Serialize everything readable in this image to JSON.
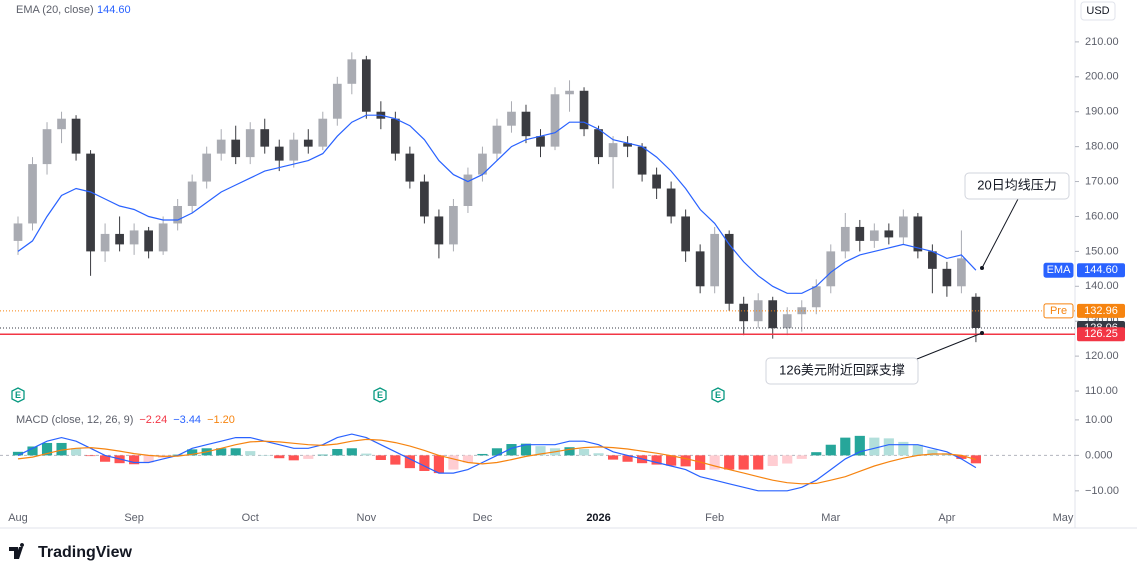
{
  "chart_data": [
    {
      "type": "candlestick",
      "currency": "USD",
      "up_color": "#a9abb2",
      "down_color": "#3a3b40",
      "open": [
        153,
        158,
        175,
        185,
        188,
        178,
        150,
        155,
        152,
        156,
        150,
        158,
        163,
        170,
        178,
        182,
        177,
        185,
        180,
        176,
        182,
        180,
        188,
        198,
        205,
        190,
        188,
        178,
        170,
        160,
        152,
        163,
        172,
        178,
        186,
        190,
        183,
        180,
        195,
        196,
        185,
        177,
        181,
        180,
        172,
        168,
        160,
        150,
        140,
        155,
        135,
        130,
        136,
        128,
        132,
        134,
        140,
        150,
        157,
        153,
        156,
        154,
        160,
        150,
        145,
        140,
        137,
        null,
        null,
        null,
        null,
        null,
        null
      ],
      "high": [
        160,
        177,
        187,
        190,
        189,
        179,
        158,
        160,
        158,
        157,
        160,
        165,
        172,
        180,
        185,
        186,
        187,
        188,
        182,
        184,
        185,
        190,
        200,
        207,
        206,
        193,
        190,
        180,
        172,
        162,
        165,
        174,
        180,
        188,
        193,
        192,
        185,
        197,
        199,
        197,
        186,
        183,
        183,
        181,
        174,
        170,
        162,
        152,
        157,
        156,
        137,
        138,
        137,
        134,
        136,
        142,
        152,
        161,
        159,
        158,
        158,
        162,
        161,
        152,
        147,
        156,
        138,
        null,
        null,
        null,
        null,
        null,
        null
      ],
      "low": [
        149,
        156,
        172,
        181,
        176,
        143,
        147,
        150,
        149,
        148,
        149,
        156,
        161,
        168,
        176,
        175,
        175,
        178,
        173,
        174,
        178,
        179,
        186,
        195,
        188,
        185,
        176,
        168,
        158,
        148,
        150,
        161,
        170,
        176,
        184,
        181,
        177,
        179,
        190,
        183,
        175,
        168,
        177,
        170,
        165,
        158,
        147,
        138,
        138,
        133,
        126,
        128,
        125,
        126,
        127,
        132,
        138,
        148,
        150,
        151,
        152,
        152,
        148,
        138,
        137,
        138,
        124,
        null,
        null,
        null,
        null,
        null,
        null
      ],
      "close": [
        158,
        175,
        185,
        188,
        178,
        150,
        155,
        152,
        156,
        150,
        158,
        163,
        170,
        178,
        182,
        177,
        185,
        180,
        176,
        182,
        180,
        188,
        198,
        205,
        190,
        188,
        178,
        170,
        160,
        152,
        163,
        172,
        178,
        186,
        190,
        183,
        180,
        195,
        196,
        185,
        177,
        181,
        180,
        172,
        168,
        160,
        150,
        140,
        155,
        135,
        130,
        136,
        128,
        132,
        134,
        140,
        150,
        157,
        153,
        156,
        154,
        160,
        150,
        145,
        140,
        148,
        128.06,
        null,
        null,
        null,
        null,
        null,
        null
      ],
      "series": [
        {
          "name": "EMA (20, close)",
          "color": "#2962ff",
          "values": [
            150,
            153,
            160,
            166,
            168,
            167,
            165,
            163,
            162,
            160,
            159,
            159,
            161,
            164,
            167,
            169,
            171,
            173,
            174,
            175,
            176,
            178,
            183,
            187,
            189,
            189,
            188,
            186,
            182,
            176,
            172,
            170,
            172,
            176,
            180,
            182,
            183,
            184,
            187,
            187,
            185,
            182,
            181,
            180,
            177,
            173,
            168,
            162,
            158,
            152,
            147,
            143,
            140,
            138,
            138,
            140,
            144,
            147,
            149,
            150,
            151,
            152,
            151,
            150,
            148,
            149,
            144.6,
            null,
            null,
            null,
            null,
            null,
            null
          ]
        }
      ],
      "ylim": [
        106,
        222
      ],
      "yticks": [
        {
          "value": 110,
          "label": "110.00"
        },
        {
          "value": 120,
          "label": "120.00"
        },
        {
          "value": 130,
          "label": "130.00"
        },
        {
          "value": 140,
          "label": "140.00"
        },
        {
          "value": 150,
          "label": "150.00"
        },
        {
          "value": 160,
          "label": "160.00"
        },
        {
          "value": 170,
          "label": "170.00"
        },
        {
          "value": 180,
          "label": "180.00"
        },
        {
          "value": 190,
          "label": "190.00"
        },
        {
          "value": 200,
          "label": "200.00"
        },
        {
          "value": 210,
          "label": "210.00"
        }
      ],
      "price_lines": [
        {
          "name": "EMA",
          "value": 144.6,
          "label": "144.60",
          "color": "#2962ff",
          "line": "none"
        },
        {
          "name": "Pre",
          "value": 132.96,
          "label": "132.96",
          "color": "#f68410",
          "line": "dotted"
        },
        {
          "value": 128.06,
          "label": "128.06",
          "color": "#363a45",
          "line": "dotted"
        },
        {
          "value": 126.25,
          "label": "126.25",
          "color": "#f23645",
          "line": "solid"
        }
      ],
      "annotations": [
        {
          "text": "20日均线压力"
        },
        {
          "text": "126美元附近回踩支撑"
        }
      ]
    },
    {
      "type": "macd",
      "title": "MACD (close, 12, 26, 9)",
      "legend": [
        {
          "label": "−2.24",
          "color": "#f23645"
        },
        {
          "label": "−3.44",
          "color": "#2962ff"
        },
        {
          "label": "−1.20",
          "color": "#f68410"
        }
      ],
      "categories": [
        "Aug",
        null,
        null,
        null,
        null,
        null,
        null,
        null,
        "Sep",
        null,
        null,
        null,
        null,
        null,
        null,
        null,
        "Oct",
        null,
        null,
        null,
        null,
        null,
        null,
        null,
        "Nov",
        null,
        null,
        null,
        null,
        null,
        null,
        null,
        "Dec",
        null,
        null,
        null,
        null,
        null,
        null,
        null,
        "2026",
        null,
        null,
        null,
        null,
        null,
        null,
        null,
        "Feb",
        null,
        null,
        null,
        null,
        null,
        null,
        null,
        "Mar",
        null,
        null,
        null,
        null,
        null,
        null,
        null,
        "Apr",
        null,
        null,
        null,
        null,
        null,
        null,
        null,
        "May"
      ],
      "histogram": {
        "colors": [
          "#26a69a",
          "#b2dfdb",
          "#ff5252",
          "#ffcdd2"
        ],
        "values": [
          1,
          2.5,
          3.5,
          3.5,
          2,
          -0.2,
          -1.8,
          -2.2,
          -2.5,
          -2,
          -0.7,
          0.2,
          1.7,
          2,
          2,
          2,
          1.2,
          0,
          -0.8,
          -1.4,
          -1,
          0.2,
          1.8,
          2,
          0.5,
          -1.3,
          -2.6,
          -3.6,
          -4.4,
          -5,
          -4,
          -2,
          0.4,
          2,
          3.2,
          3.3,
          2.6,
          2,
          2.3,
          1.8,
          0.6,
          -1.2,
          -1.8,
          -2.2,
          -2.6,
          -2.9,
          -3.1,
          -4.1,
          -4,
          -4,
          -4,
          -4,
          -3,
          -2.3,
          -1,
          0.9,
          3,
          5,
          5.5,
          5,
          4.8,
          3.8,
          3,
          1.6,
          0.6,
          -1,
          -2.24,
          null,
          null,
          null,
          null,
          null,
          null
        ]
      },
      "series": [
        {
          "color": "#2962ff",
          "values": [
            0,
            2,
            4,
            5,
            4,
            2,
            0,
            -1,
            -2,
            -2,
            -1,
            0,
            2,
            3,
            4,
            5,
            5,
            4,
            3,
            2,
            2,
            3,
            5,
            6,
            5,
            3,
            1,
            -1,
            -3,
            -5,
            -5,
            -4,
            -2,
            0,
            2,
            3,
            3,
            3,
            4,
            4,
            3,
            1,
            0,
            -1,
            -2,
            -3,
            -4,
            -6,
            -7,
            -8,
            -9,
            -10,
            -10,
            -10,
            -9,
            -7,
            -4,
            -1,
            1,
            2,
            3,
            3,
            3,
            2,
            1,
            -1,
            -3.44,
            null,
            null,
            null,
            null,
            null,
            null
          ]
        },
        {
          "color": "#f68410",
          "values": [
            -1,
            -0.5,
            0.5,
            1.5,
            2,
            2.2,
            1.8,
            1.2,
            0.5,
            0,
            -0.3,
            -0.2,
            0.3,
            1,
            2,
            3,
            3.8,
            4,
            3.8,
            3.4,
            3,
            2.8,
            3.2,
            4,
            4.5,
            4.3,
            3.6,
            2.6,
            1.4,
            0,
            -1,
            -2,
            -2.4,
            -2,
            -1.2,
            -0.3,
            0.4,
            1,
            1.7,
            2.2,
            2.4,
            2.2,
            1.8,
            1.2,
            0.6,
            -0.1,
            -0.9,
            -1.9,
            -3,
            -4,
            -5,
            -6,
            -7,
            -7.7,
            -8,
            -7.9,
            -7,
            -6,
            -4.5,
            -3,
            -1.8,
            -0.8,
            0,
            0.4,
            0.4,
            0,
            -1.2,
            null,
            null,
            null,
            null,
            null,
            null
          ]
        }
      ],
      "ylim": [
        -15.4,
        14.2
      ],
      "yticks": [
        {
          "value": -10,
          "label": "−10.00"
        },
        {
          "value": 0,
          "label": "0.000"
        },
        {
          "value": 10,
          "label": "10.00"
        }
      ]
    }
  ],
  "footer": {
    "brand": "TradingView"
  }
}
